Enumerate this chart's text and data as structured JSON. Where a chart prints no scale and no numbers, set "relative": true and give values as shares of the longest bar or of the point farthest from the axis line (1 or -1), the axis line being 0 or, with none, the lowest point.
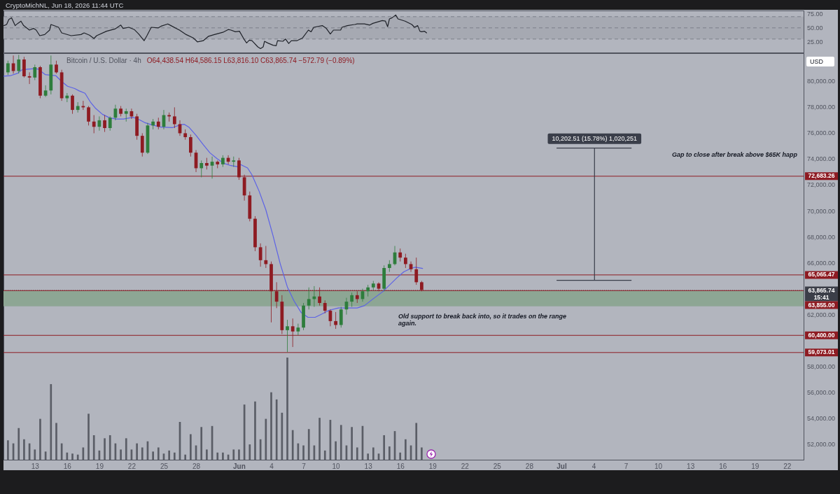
{
  "chart_data": [
    {
      "type": "line",
      "annotations": [
        "CryptoMichNL, Jun 18, 2026 11:44 UTC"
      ],
      "series": [
        {
          "color": "#1f2229",
          "x": [
            "2026-05-10T03:00",
            "2026-05-10T09:00",
            "2026-05-10T14:00",
            "2026-05-10T20:00",
            "2026-05-11T00:00",
            "2026-05-11T04:00",
            "2026-05-11T10:00",
            "2026-05-11T17:00",
            "2026-05-11T23:00",
            "2026-05-12T12:00",
            "2026-05-12T21:00",
            "2026-05-13T03:00",
            "2026-05-13T11:00",
            "2026-05-13T22:00",
            "2026-05-14T09:00",
            "2026-05-14T12:00",
            "2026-05-15T05:00",
            "2026-05-15T12:00",
            "2026-05-16T09:00",
            "2026-05-17T07:00",
            "2026-05-17T14:00",
            "2026-05-18T02:00",
            "2026-05-18T12:00",
            "2026-05-18T18:00",
            "2026-05-19T16:00",
            "2026-05-20T11:00",
            "2026-05-21T00:00",
            "2026-05-21T05:00",
            "2026-05-21T18:00",
            "2026-05-22T06:00",
            "2026-05-22T16:00",
            "2026-05-23T04:00",
            "2026-05-23T11:00",
            "2026-05-23T20:00",
            "2026-05-24T12:00",
            "2026-05-24T18:00",
            "2026-05-25T09:00",
            "2026-05-25T16:00",
            "2026-05-26T11:00",
            "2026-05-27T02:00",
            "2026-05-27T18:00",
            "2026-05-28T03:00",
            "2026-05-28T16:00",
            "2026-05-29T04:00",
            "2026-05-29T17:00",
            "2026-05-30T12:00",
            "2026-05-31T00:00",
            "2026-05-31T06:00",
            "2026-05-31T16:00",
            "2026-06-01T01:00",
            "2026-06-01T11:00",
            "2026-06-01T17:00",
            "2026-06-01T23:00",
            "2026-06-02T05:00",
            "2026-06-02T18:00",
            "2026-06-03T00:00",
            "2026-06-03T06:00",
            "2026-06-03T09:00",
            "2026-06-03T16:00",
            "2026-06-04T04:00",
            "2026-06-04T11:00",
            "2026-06-04T14:00",
            "2026-06-05T02:00",
            "2026-06-05T08:00",
            "2026-06-05T15:00",
            "2026-06-05T21:00",
            "2026-06-06T09:00",
            "2026-06-06T22:00",
            "2026-06-07T11:00",
            "2026-06-07T17:00",
            "2026-06-07T23:00",
            "2026-06-08T18:00",
            "2026-06-09T03:00",
            "2026-06-09T12:00",
            "2026-06-09T19:00",
            "2026-06-10T11:00",
            "2026-06-10T14:00",
            "2026-06-11T02:00",
            "2026-06-11T18:00",
            "2026-06-12T00:00",
            "2026-06-12T16:00",
            "2026-06-13T04:00",
            "2026-06-13T11:00",
            "2026-06-14T08:00",
            "2026-06-14T15:00",
            "2026-06-14T20:00",
            "2026-06-15T00:00",
            "2026-06-15T06:00",
            "2026-06-15T14:00",
            "2026-06-15T19:00",
            "2026-06-16T11:00",
            "2026-06-17T02:00",
            "2026-06-17T08:00",
            "2026-06-17T15:00",
            "2026-06-17T20:00",
            "2026-06-18T00:00",
            "2026-06-18T06:00",
            "2026-06-18T11:00"
          ],
          "values": [
            54,
            56,
            65,
            68,
            61,
            54,
            58,
            62,
            54,
            46,
            49,
            46,
            36,
            38,
            46,
            56,
            51,
            41,
            36,
            38,
            41,
            37,
            31,
            36,
            44,
            48,
            55,
            49,
            51,
            47,
            39,
            27,
            37,
            51,
            50,
            53,
            57,
            54,
            46,
            38,
            32,
            25,
            27,
            35,
            38,
            42,
            47,
            46,
            43,
            44,
            30,
            23,
            28,
            27,
            16,
            13,
            16,
            26,
            23,
            19,
            18,
            27,
            26,
            30,
            22,
            27,
            27,
            32,
            46,
            43,
            51,
            54,
            49,
            39,
            46,
            46,
            51,
            54,
            56,
            57,
            57,
            55,
            58,
            63,
            62,
            52,
            66,
            68,
            73,
            66,
            62,
            56,
            51,
            54,
            44,
            43,
            44,
            41
          ]
        }
      ],
      "xlim": [
        "2026-05-10T02:00",
        "2026-07-23T13:00"
      ],
      "ylim": [
        6,
        81
      ],
      "yticks": [
        {
          "value": 25,
          "label": "25.00"
        },
        {
          "value": 50,
          "label": "50.00"
        },
        {
          "value": 75,
          "label": "75.00"
        }
      ],
      "bands": [
        {
          "axis": "y",
          "from": 30,
          "to": 70,
          "color": "#a6a9b2"
        }
      ],
      "ref_lines": [
        {
          "axis": "y",
          "value": 70,
          "color": "#7d808a",
          "line_style": "dashed"
        },
        {
          "axis": "y",
          "value": 50,
          "color": "#7d808a",
          "line_style": "dashed"
        },
        {
          "axis": "y",
          "value": 30,
          "color": "#7d808a",
          "line_style": "dashed"
        }
      ],
      "tick_labels": "y"
    },
    {
      "type": "candlestick",
      "title": "Bitcoin / U.S. Dollar · 4h",
      "subtitle": "O64,438.54 H64,586.15 L63,816.10 C63,865.74 −572.79 (−0.89%)",
      "ylabel": "USD",
      "x": [
        "2026-05-10T12:00",
        "2026-05-11T00:00",
        "2026-05-11T12:00",
        "2026-05-12T00:00",
        "2026-05-12T12:00",
        "2026-05-13T00:00",
        "2026-05-13T12:00",
        "2026-05-14T00:00",
        "2026-05-14T12:00",
        "2026-05-15T00:00",
        "2026-05-15T12:00",
        "2026-05-16T00:00",
        "2026-05-16T12:00",
        "2026-05-17T00:00",
        "2026-05-17T12:00",
        "2026-05-18T00:00",
        "2026-05-18T12:00",
        "2026-05-19T00:00",
        "2026-05-19T12:00",
        "2026-05-20T00:00",
        "2026-05-20T12:00",
        "2026-05-21T00:00",
        "2026-05-21T12:00",
        "2026-05-22T00:00",
        "2026-05-22T12:00",
        "2026-05-23T00:00",
        "2026-05-23T12:00",
        "2026-05-24T00:00",
        "2026-05-24T12:00",
        "2026-05-25T00:00",
        "2026-05-25T12:00",
        "2026-05-26T00:00",
        "2026-05-26T12:00",
        "2026-05-27T00:00",
        "2026-05-27T12:00",
        "2026-05-28T00:00",
        "2026-05-28T12:00",
        "2026-05-29T00:00",
        "2026-05-29T12:00",
        "2026-05-30T00:00",
        "2026-05-30T12:00",
        "2026-05-31T00:00",
        "2026-05-31T12:00",
        "2026-06-01T00:00",
        "2026-06-01T12:00",
        "2026-06-02T00:00",
        "2026-06-02T12:00",
        "2026-06-03T00:00",
        "2026-06-03T12:00",
        "2026-06-04T00:00",
        "2026-06-04T12:00",
        "2026-06-05T00:00",
        "2026-06-05T12:00",
        "2026-06-06T00:00",
        "2026-06-06T12:00",
        "2026-06-07T00:00",
        "2026-06-07T12:00",
        "2026-06-08T00:00",
        "2026-06-08T12:00",
        "2026-06-09T00:00",
        "2026-06-09T12:00",
        "2026-06-10T00:00",
        "2026-06-10T12:00",
        "2026-06-11T00:00",
        "2026-06-11T12:00",
        "2026-06-12T00:00",
        "2026-06-12T12:00",
        "2026-06-13T00:00",
        "2026-06-13T12:00",
        "2026-06-14T00:00",
        "2026-06-14T12:00",
        "2026-06-15T00:00",
        "2026-06-15T12:00",
        "2026-06-16T00:00",
        "2026-06-16T12:00",
        "2026-06-17T00:00",
        "2026-06-17T12:00",
        "2026-06-18T00:00"
      ],
      "ohlc": [
        [
          80700,
          81600,
          80500,
          81400
        ],
        [
          81400,
          82000,
          80600,
          80800
        ],
        [
          80800,
          82050,
          80600,
          81700
        ],
        [
          81700,
          81900,
          80300,
          80400
        ],
        [
          80400,
          80700,
          79800,
          80300
        ],
        [
          80300,
          81300,
          80100,
          81100
        ],
        [
          81100,
          81200,
          78700,
          78900
        ],
        [
          78900,
          79700,
          78800,
          79300
        ],
        [
          79300,
          82000,
          79000,
          81300
        ],
        [
          81300,
          81600,
          80600,
          80700
        ],
        [
          80700,
          80900,
          78500,
          78700
        ],
        [
          78700,
          79100,
          78400,
          78900
        ],
        [
          78900,
          79000,
          77500,
          77800
        ],
        [
          77800,
          78400,
          77600,
          78100
        ],
        [
          78100,
          78500,
          77800,
          78000
        ],
        [
          78000,
          78100,
          76600,
          76900
        ],
        [
          76900,
          77400,
          76000,
          76500
        ],
        [
          76500,
          77300,
          76200,
          77000
        ],
        [
          77000,
          77400,
          76100,
          76400
        ],
        [
          76400,
          77300,
          76200,
          77200
        ],
        [
          77200,
          78200,
          77000,
          77900
        ],
        [
          77900,
          78100,
          77300,
          77500
        ],
        [
          77500,
          77900,
          76900,
          77700
        ],
        [
          77700,
          77900,
          77100,
          77300
        ],
        [
          77300,
          77500,
          75500,
          75800
        ],
        [
          75800,
          76000,
          74200,
          74500
        ],
        [
          74500,
          76800,
          74400,
          76600
        ],
        [
          76600,
          77100,
          76300,
          76900
        ],
        [
          76900,
          77200,
          76300,
          76500
        ],
        [
          76500,
          77800,
          76300,
          77400
        ],
        [
          77400,
          77600,
          76900,
          77300
        ],
        [
          77300,
          78000,
          76400,
          76700
        ],
        [
          76700,
          77000,
          75800,
          76000
        ],
        [
          76000,
          76300,
          75500,
          75700
        ],
        [
          75700,
          75900,
          74200,
          74500
        ],
        [
          74500,
          74700,
          73000,
          73300
        ],
        [
          73300,
          73900,
          72600,
          73700
        ],
        [
          73700,
          74100,
          73200,
          73500
        ],
        [
          73500,
          74200,
          72500,
          73800
        ],
        [
          73800,
          73900,
          73300,
          73600
        ],
        [
          73600,
          74300,
          73400,
          74100
        ],
        [
          74100,
          74300,
          73600,
          73800
        ],
        [
          73800,
          74200,
          73400,
          73900
        ],
        [
          73900,
          74100,
          72400,
          72600
        ],
        [
          72600,
          72800,
          70800,
          71200
        ],
        [
          71200,
          71500,
          69200,
          69400
        ],
        [
          69400,
          69600,
          66900,
          67200
        ],
        [
          67200,
          67500,
          65700,
          66200
        ],
        [
          66200,
          67300,
          65600,
          65900
        ],
        [
          65900,
          66100,
          61400,
          63800
        ],
        [
          63800,
          64500,
          62500,
          63000
        ],
        [
          63000,
          63500,
          60500,
          60800
        ],
        [
          60800,
          61600,
          59100,
          61100
        ],
        [
          61100,
          61700,
          59500,
          60700
        ],
        [
          60700,
          61300,
          60400,
          61000
        ],
        [
          61000,
          62900,
          60800,
          62700
        ],
        [
          62700,
          64100,
          62400,
          63200
        ],
        [
          63200,
          64200,
          62600,
          63400
        ],
        [
          63400,
          64100,
          62700,
          62900
        ],
        [
          62900,
          63100,
          62100,
          62300
        ],
        [
          62300,
          62400,
          61100,
          61500
        ],
        [
          61500,
          62200,
          60900,
          61200
        ],
        [
          61200,
          62600,
          61000,
          62400
        ],
        [
          62400,
          63300,
          62000,
          63000
        ],
        [
          63000,
          63700,
          62600,
          63500
        ],
        [
          63500,
          63800,
          62900,
          63200
        ],
        [
          63200,
          64000,
          63000,
          63800
        ],
        [
          63800,
          64300,
          63400,
          64100
        ],
        [
          64100,
          64600,
          63900,
          64400
        ],
        [
          64400,
          64500,
          63800,
          64000
        ],
        [
          64000,
          65800,
          63800,
          65600
        ],
        [
          65600,
          66200,
          65300,
          65900
        ],
        [
          65900,
          67300,
          65800,
          66800
        ],
        [
          66800,
          67100,
          66100,
          66400
        ],
        [
          66400,
          66700,
          65600,
          65900
        ],
        [
          65900,
          66100,
          65300,
          65500
        ],
        [
          65500,
          66400,
          64300,
          64500
        ],
        [
          64500,
          64600,
          63800,
          63900
        ]
      ],
      "colors": [
        "#2e7d3c",
        "#8e1b22",
        "#2e7d3c",
        "#8e1b22",
        "#8e1b22",
        "#2e7d3c",
        "#8e1b22",
        "#2e7d3c",
        "#2e7d3c",
        "#8e1b22",
        "#8e1b22",
        "#2e7d3c",
        "#8e1b22",
        "#2e7d3c",
        "#8e1b22",
        "#8e1b22",
        "#8e1b22",
        "#2e7d3c",
        "#8e1b22",
        "#2e7d3c",
        "#2e7d3c",
        "#8e1b22",
        "#2e7d3c",
        "#8e1b22",
        "#8e1b22",
        "#8e1b22",
        "#2e7d3c",
        "#2e7d3c",
        "#8e1b22",
        "#2e7d3c",
        "#8e1b22",
        "#8e1b22",
        "#8e1b22",
        "#8e1b22",
        "#8e1b22",
        "#8e1b22",
        "#2e7d3c",
        "#8e1b22",
        "#2e7d3c",
        "#8e1b22",
        "#2e7d3c",
        "#8e1b22",
        "#2e7d3c",
        "#8e1b22",
        "#8e1b22",
        "#8e1b22",
        "#8e1b22",
        "#8e1b22",
        "#8e1b22",
        "#8e1b22",
        "#8e1b22",
        "#8e1b22",
        "#2e7d3c",
        "#8e1b22",
        "#2e7d3c",
        "#2e7d3c",
        "#2e7d3c",
        "#2e7d3c",
        "#8e1b22",
        "#8e1b22",
        "#8e1b22",
        "#8e1b22",
        "#2e7d3c",
        "#2e7d3c",
        "#2e7d3c",
        "#8e1b22",
        "#2e7d3c",
        "#2e7d3c",
        "#2e7d3c",
        "#8e1b22",
        "#2e7d3c",
        "#2e7d3c",
        "#2e7d3c",
        "#8e1b22",
        "#8e1b22",
        "#8e1b22",
        "#8e1b22",
        "#8e1b22"
      ],
      "series": [
        {
          "type": "line",
          "color": "#5c62e6",
          "x": [
            "2026-05-10T02:00",
            "2026-05-10T17:00",
            "2026-05-11T09:00",
            "2026-05-11T19:00",
            "2026-05-12T08:00",
            "2026-05-13T00:00",
            "2026-05-13T08:00",
            "2026-05-13T23:00",
            "2026-05-14T10:00",
            "2026-05-14T23:00",
            "2026-05-15T12:00",
            "2026-05-16T01:00",
            "2026-05-16T17:00",
            "2026-05-17T03:00",
            "2026-05-17T16:00",
            "2026-05-18T05:00",
            "2026-05-18T16:00",
            "2026-05-19T07:00",
            "2026-05-19T23:00",
            "2026-05-20T14:00",
            "2026-05-21T06:00",
            "2026-05-22T03:00",
            "2026-05-22T14:00",
            "2026-05-23T05:00",
            "2026-05-23T21:00",
            "2026-05-24T18:00",
            "2026-05-25T20:00",
            "2026-05-26T12:00",
            "2026-05-26T22:00",
            "2026-05-27T08:00",
            "2026-05-28T00:00",
            "2026-05-28T16:00",
            "2026-05-29T07:00",
            "2026-05-29T23:00",
            "2026-05-30T14:00",
            "2026-05-31T06:00",
            "2026-05-31T22:00",
            "2026-06-01T03:00",
            "2026-06-01T19:00",
            "2026-06-02T05:00",
            "2026-06-02T21:00",
            "2026-06-03T12:00",
            "2026-06-04T04:00",
            "2026-06-04T20:00",
            "2026-06-05T12:00",
            "2026-06-06T03:00",
            "2026-06-06T19:00",
            "2026-06-07T10:00",
            "2026-06-08T02:00",
            "2026-06-08T18:00",
            "2026-06-09T09:00",
            "2026-06-10T06:00",
            "2026-06-11T03:00",
            "2026-06-12T00:00",
            "2026-06-12T16:00",
            "2026-06-13T12:00",
            "2026-06-14T09:00",
            "2026-06-15T01:00",
            "2026-06-15T17:00",
            "2026-06-16T08:00",
            "2026-06-17T00:00",
            "2026-06-17T10:00",
            "2026-06-18T02:00"
          ],
          "values": [
            80400,
            80440,
            80620,
            80890,
            80940,
            80980,
            80940,
            80530,
            80490,
            80440,
            79990,
            79630,
            79450,
            79270,
            79090,
            78360,
            77910,
            77460,
            77190,
            77100,
            77100,
            77230,
            77100,
            76830,
            76650,
            76470,
            76440,
            76650,
            76690,
            76470,
            75840,
            75120,
            74490,
            74040,
            73680,
            73500,
            73410,
            73590,
            73320,
            72780,
            71520,
            70080,
            68090,
            65930,
            64130,
            63050,
            62150,
            61790,
            61790,
            62060,
            62330,
            62510,
            62510,
            62510,
            62690,
            63230,
            63770,
            64310,
            64850,
            65300,
            65570,
            65660,
            65570
          ]
        },
        {
          "type": "line",
          "name": "10,202.51 (15.78%) 1,020,251",
          "color": "#3a3e4a",
          "x": [
            "2026-06-30T14:00",
            "2026-07-07T12:00",
            "2026-07-04T02:00",
            "2026-07-04T02:00",
            "2026-06-30T14:00",
            "2026-07-07T12:00",
            "2026-07-04T02:00"
          ],
          "values": [
            64650,
            64650,
            64650,
            74850,
            74850,
            74850,
            74850
          ]
        }
      ],
      "xlim": [
        "2026-05-10T02:00",
        "2026-07-23T13:00"
      ],
      "ylim": [
        50800,
        82180
      ],
      "xticks": [
        {
          "value": "2026-05-13",
          "label": "13"
        },
        {
          "value": "2026-05-16",
          "label": "16"
        },
        {
          "value": "2026-05-19",
          "label": "19"
        },
        {
          "value": "2026-05-22",
          "label": "22"
        },
        {
          "value": "2026-05-25",
          "label": "25"
        },
        {
          "value": "2026-05-28",
          "label": "28"
        },
        {
          "value": "2026-06-01",
          "label": "Jun"
        },
        {
          "value": "2026-06-04",
          "label": "4"
        },
        {
          "value": "2026-06-07",
          "label": "7"
        },
        {
          "value": "2026-06-10",
          "label": "10"
        },
        {
          "value": "2026-06-13",
          "label": "13"
        },
        {
          "value": "2026-06-16",
          "label": "16"
        },
        {
          "value": "2026-06-19",
          "label": "19"
        },
        {
          "value": "2026-06-22",
          "label": "22"
        },
        {
          "value": "2026-06-25",
          "label": "25"
        },
        {
          "value": "2026-06-28",
          "label": "28"
        },
        {
          "value": "2026-07-01",
          "label": "Jul"
        },
        {
          "value": "2026-07-04",
          "label": "4"
        },
        {
          "value": "2026-07-07",
          "label": "7"
        },
        {
          "value": "2026-07-10",
          "label": "10"
        },
        {
          "value": "2026-07-13",
          "label": "13"
        },
        {
          "value": "2026-07-16",
          "label": "16"
        },
        {
          "value": "2026-07-19",
          "label": "19"
        },
        {
          "value": "2026-07-22",
          "label": "22"
        }
      ],
      "yticks": [
        {
          "value": 52000,
          "label": "52,000.00"
        },
        {
          "value": 54000,
          "label": "54,000.00"
        },
        {
          "value": 56000,
          "label": "56,000.00"
        },
        {
          "value": 58000,
          "label": "58,000.00"
        },
        {
          "value": 62000,
          "label": "62,000.00"
        },
        {
          "value": 66000,
          "label": "66,000.00"
        },
        {
          "value": 68000,
          "label": "68,000.00"
        },
        {
          "value": 70000,
          "label": "70,000.00"
        },
        {
          "value": 72000,
          "label": "72,000.00"
        },
        {
          "value": 74000,
          "label": "74,000.00"
        },
        {
          "value": 76000,
          "label": "76,000.00"
        },
        {
          "value": 78000,
          "label": "78,000.00"
        },
        {
          "value": 80000,
          "label": "80,000.00"
        }
      ],
      "ref_lines": [
        {
          "axis": "y",
          "value": 72683.26,
          "label": "72,683.26",
          "color": "#8e1b22"
        },
        {
          "axis": "y",
          "value": 65065.47,
          "label": "65,065.47",
          "color": "#8e1b22"
        },
        {
          "axis": "y",
          "value": 63865.74,
          "label": "63,865.74\n15:41",
          "color": "#3b3e48",
          "line_style": "dotted"
        },
        {
          "axis": "y",
          "value": 63855,
          "label": "63,855.00",
          "color": "#8e1b22"
        },
        {
          "axis": "y",
          "value": 60400,
          "label": "60,400.00",
          "color": "#8e1b22"
        },
        {
          "axis": "y",
          "value": 59073.01,
          "label": "59,073.01",
          "color": "#8e1b22"
        }
      ],
      "bands": [
        {
          "axis": "y",
          "from": 62640,
          "to": 63860,
          "color": "#8da694"
        }
      ],
      "annotations": [
        "Gap to close after break above $65K happ",
        "Old support to break back into, so it trades on the range again."
      ]
    },
    {
      "type": "bar",
      "relative": true,
      "color": "#5a5d66",
      "tick_labels": false,
      "xlim": [
        "2026-05-10T02:00",
        "2026-07-23T13:00"
      ],
      "x": [
        "2026-05-10T12:00",
        "2026-05-11T00:00",
        "2026-05-11T12:00",
        "2026-05-12T00:00",
        "2026-05-12T12:00",
        "2026-05-13T00:00",
        "2026-05-13T12:00",
        "2026-05-14T00:00",
        "2026-05-14T12:00",
        "2026-05-15T00:00",
        "2026-05-15T12:00",
        "2026-05-16T00:00",
        "2026-05-16T12:00",
        "2026-05-17T00:00",
        "2026-05-17T12:00",
        "2026-05-18T00:00",
        "2026-05-18T12:00",
        "2026-05-19T00:00",
        "2026-05-19T12:00",
        "2026-05-20T00:00",
        "2026-05-20T12:00",
        "2026-05-21T00:00",
        "2026-05-21T12:00",
        "2026-05-22T00:00",
        "2026-05-22T12:00",
        "2026-05-23T00:00",
        "2026-05-23T12:00",
        "2026-05-24T00:00",
        "2026-05-24T12:00",
        "2026-05-25T00:00",
        "2026-05-25T12:00",
        "2026-05-26T00:00",
        "2026-05-26T12:00",
        "2026-05-27T00:00",
        "2026-05-27T12:00",
        "2026-05-28T00:00",
        "2026-05-28T12:00",
        "2026-05-29T00:00",
        "2026-05-29T12:00",
        "2026-05-30T00:00",
        "2026-05-30T12:00",
        "2026-05-31T00:00",
        "2026-05-31T12:00",
        "2026-06-01T00:00",
        "2026-06-01T12:00",
        "2026-06-02T00:00",
        "2026-06-02T12:00",
        "2026-06-03T00:00",
        "2026-06-03T12:00",
        "2026-06-04T00:00",
        "2026-06-04T12:00",
        "2026-06-05T00:00",
        "2026-06-05T12:00",
        "2026-06-06T00:00",
        "2026-06-06T12:00",
        "2026-06-07T00:00",
        "2026-06-07T12:00",
        "2026-06-08T00:00",
        "2026-06-08T12:00",
        "2026-06-09T00:00",
        "2026-06-09T12:00",
        "2026-06-10T00:00",
        "2026-06-10T12:00",
        "2026-06-11T00:00",
        "2026-06-11T12:00",
        "2026-06-12T00:00",
        "2026-06-12T12:00",
        "2026-06-13T00:00",
        "2026-06-13T12:00",
        "2026-06-14T00:00",
        "2026-06-14T12:00",
        "2026-06-15T00:00",
        "2026-06-15T12:00",
        "2026-06-16T00:00",
        "2026-06-16T12:00",
        "2026-06-17T00:00",
        "2026-06-17T12:00",
        "2026-06-18T00:00"
      ],
      "values": [
        0.19,
        0.16,
        0.31,
        0.2,
        0.16,
        0.1,
        0.4,
        0.08,
        0.74,
        0.36,
        0.16,
        0.07,
        0.06,
        0.05,
        0.12,
        0.45,
        0.24,
        0.09,
        0.21,
        0.24,
        0.16,
        0.1,
        0.21,
        0.1,
        0.16,
        0.12,
        0.18,
        0.08,
        0.12,
        0.06,
        0.09,
        0.07,
        0.37,
        0.05,
        0.25,
        0.14,
        0.32,
        0.1,
        0.33,
        0.07,
        0.07,
        0.05,
        0.1,
        0.1,
        0.54,
        0.15,
        0.57,
        0.2,
        0.4,
        0.66,
        0.59,
        0.46,
        1,
        0.29,
        0.16,
        0.14,
        0.3,
        0.14,
        0.41,
        0.09,
        0.39,
        0.18,
        0.34,
        0.14,
        0.32,
        0.12,
        0.33,
        0.06,
        0.12,
        0.06,
        0.24,
        0.13,
        0.28,
        0.07,
        0.2,
        0.14,
        0.36,
        0.12
      ]
    }
  ]
}
